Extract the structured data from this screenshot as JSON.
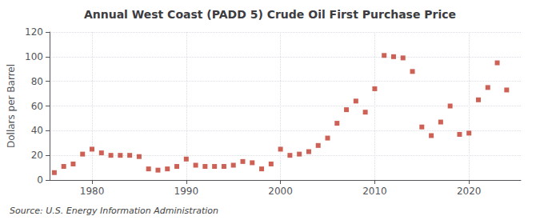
{
  "chart_data": {
    "type": "scatter",
    "title": "Annual West Coast (PADD 5) Crude Oil First Purchase Price",
    "y_label": "Dollars per Barrel",
    "annotations": [
      "Source: U.S. Energy Information Administration"
    ],
    "x": [
      1976,
      1977,
      1978,
      1979,
      1980,
      1981,
      1982,
      1983,
      1984,
      1985,
      1986,
      1987,
      1988,
      1989,
      1990,
      1991,
      1992,
      1993,
      1994,
      1995,
      1996,
      1997,
      1998,
      1999,
      2000,
      2001,
      2002,
      2003,
      2004,
      2005,
      2006,
      2007,
      2008,
      2009,
      2010,
      2011,
      2012,
      2013,
      2014,
      2015,
      2016,
      2017,
      2018,
      2019,
      2020,
      2021,
      2022,
      2023,
      2024
    ],
    "values": [
      6,
      11,
      13,
      21,
      25,
      22,
      20,
      20,
      20,
      19,
      9,
      8,
      9,
      11,
      17,
      12,
      11,
      11,
      11,
      12,
      15,
      14,
      9,
      13,
      25,
      20,
      21,
      23,
      28,
      34,
      46,
      57,
      64,
      55,
      74,
      101,
      100,
      99,
      88,
      43,
      36,
      47,
      60,
      37,
      38,
      65,
      75,
      95,
      73
    ],
    "color": "#c0392b",
    "marker": "square",
    "xlim": [
      1975.5,
      2025.5
    ],
    "xticks": [
      1980,
      1990,
      2000,
      2010,
      2020
    ],
    "ylim": [
      0,
      120
    ],
    "yticks": [
      0,
      20,
      40,
      60,
      80,
      100,
      120
    ],
    "grid": true
  }
}
